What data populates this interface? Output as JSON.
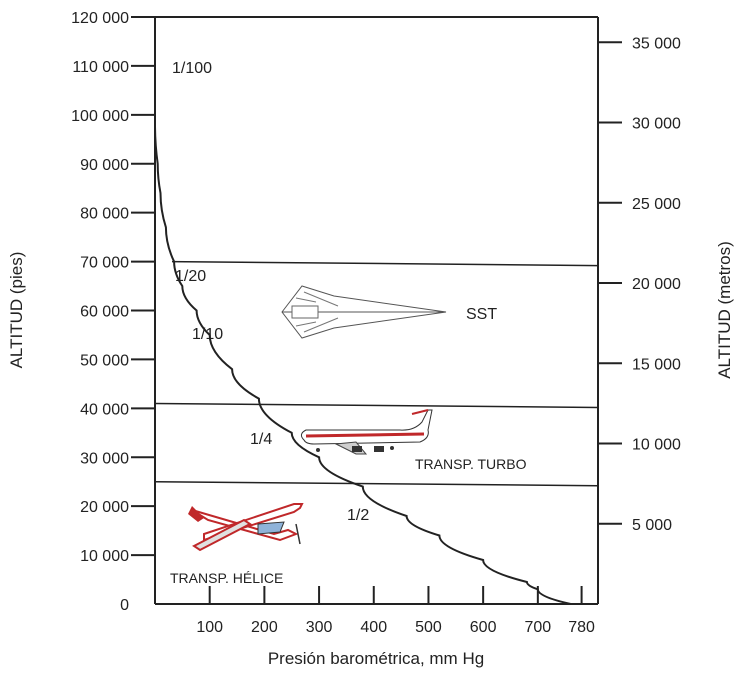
{
  "chart_data": {
    "type": "line",
    "xlabel": "Presión barométrica, mm Hg",
    "ylabel_left": "ALTITUD (pies)",
    "ylabel_right": "ALTITUD (metros)",
    "ylim_left": [
      0,
      120000
    ],
    "x_ticks": [
      "100",
      "200",
      "300",
      "400",
      "500",
      "600",
      "700",
      "780"
    ],
    "y_ticks_left": [
      "0",
      "10 000",
      "20 000",
      "30 000",
      "40 000",
      "50 000",
      "60 000",
      "70 000",
      "80 000",
      "90 000",
      "100 000",
      "110 000",
      "120 000"
    ],
    "y_ticks_right": [
      "5 000",
      "10 000",
      "15 000",
      "20 000",
      "25 000",
      "30 000",
      "35 000"
    ],
    "series": [
      {
        "x": [
          0,
          5,
          10,
          20,
          35,
          50,
          76,
          100,
          141,
          190,
          250,
          300,
          380,
          460,
          520,
          600,
          680,
          700,
          760
        ],
        "y": [
          98000,
          90000,
          84000,
          77000,
          70000,
          65000,
          60000,
          55000,
          48000,
          42000,
          35000,
          30000,
          24000,
          18000,
          14000,
          9000,
          4500,
          3000,
          0
        ]
      }
    ],
    "altitude_bands_ft": [
      70000,
      41000,
      25000
    ],
    "band_labels": {
      "top": "SST",
      "middle": "TRANSP. TURBO",
      "bottom": "TRANSP. HÉLICE"
    },
    "fraction_labels": [
      "1/100",
      "1/20",
      "1/10",
      "1/4",
      "1/2"
    ]
  },
  "colors": {
    "line": "#222222",
    "aircraft_red": "#c0282a"
  },
  "icons": [
    "sst-aircraft-icon",
    "jet-airliner-icon",
    "propeller-plane-icon"
  ]
}
